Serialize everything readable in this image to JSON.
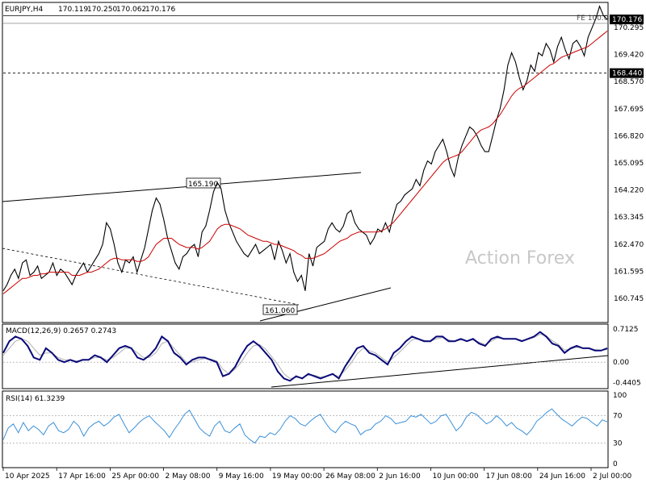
{
  "chart_data": {
    "type": "line",
    "header": {
      "symbol": "EURJPY,H4",
      "open": "170.119",
      "high": "170.250",
      "low": "170.062",
      "close": "170.176"
    },
    "watermark": "Action Forex",
    "price_panel": {
      "ylim": [
        160.4,
        170.7
      ],
      "y_ticks": [
        "170.295",
        "169.420",
        "168.570",
        "167.695",
        "166.820",
        "165.095",
        "164.220",
        "163.345",
        "162.470",
        "161.595",
        "160.745"
      ],
      "close_label": "170.176",
      "level_label": "168.440",
      "fe_label": "FE 100.0",
      "fe_level": 170.3,
      "hlines": [
        170.3,
        170.05,
        168.44
      ],
      "annotations": [
        "165.190",
        "161.060"
      ],
      "close_series": [
        161.4,
        161.6,
        161.9,
        162.1,
        161.8,
        162.3,
        162.4,
        161.9,
        162.0,
        162.2,
        161.8,
        161.9,
        162.0,
        162.3,
        161.9,
        162.1,
        162.0,
        161.8,
        161.6,
        161.9,
        162.1,
        162.3,
        162.0,
        162.2,
        162.4,
        162.6,
        162.9,
        163.6,
        163.4,
        162.9,
        162.3,
        162.0,
        162.4,
        162.3,
        162.5,
        162.0,
        162.4,
        162.8,
        163.4,
        164.0,
        164.4,
        164.2,
        163.7,
        163.1,
        162.7,
        162.3,
        162.1,
        162.5,
        162.6,
        162.8,
        162.9,
        162.5,
        163.3,
        163.5,
        164.0,
        164.6,
        164.9,
        164.7,
        164.0,
        163.6,
        163.3,
        163.0,
        162.8,
        162.6,
        162.5,
        162.7,
        162.9,
        162.6,
        162.7,
        162.8,
        162.9,
        162.4,
        163.0,
        162.7,
        162.3,
        162.6,
        162.0,
        161.7,
        161.9,
        161.4,
        162.6,
        162.2,
        162.8,
        162.9,
        163.0,
        163.4,
        163.6,
        163.4,
        163.3,
        163.5,
        163.9,
        164.0,
        163.6,
        163.4,
        163.3,
        163.2,
        162.9,
        163.1,
        163.4,
        163.3,
        163.6,
        163.3,
        163.8,
        164.2,
        164.3,
        164.5,
        164.6,
        164.7,
        165.0,
        164.8,
        165.3,
        165.6,
        165.5,
        165.9,
        166.1,
        166.3,
        165.9,
        165.4,
        165.1,
        165.7,
        166.1,
        166.4,
        166.7,
        166.6,
        166.4,
        166.1,
        165.9,
        165.9,
        166.4,
        166.9,
        167.3,
        167.9,
        168.7,
        169.1,
        168.8,
        168.3,
        167.9,
        168.2,
        168.7,
        168.5,
        169.1,
        169.0,
        169.4,
        169.2,
        168.8,
        169.3,
        169.6,
        169.2,
        168.9,
        169.4,
        169.5,
        169.3,
        169.0,
        169.6,
        169.9,
        170.2,
        170.6,
        170.3,
        170.176
      ],
      "ma_series": [
        161.3,
        161.4,
        161.5,
        161.6,
        161.7,
        161.8,
        161.8,
        161.85,
        161.9,
        161.9,
        161.95,
        161.95,
        162.0,
        162.0,
        162.0,
        162.0,
        162.0,
        162.0,
        161.9,
        161.9,
        161.9,
        161.95,
        162.0,
        162.0,
        162.05,
        162.1,
        162.2,
        162.3,
        162.4,
        162.45,
        162.45,
        162.4,
        162.4,
        162.4,
        162.4,
        162.35,
        162.35,
        162.4,
        162.5,
        162.7,
        162.9,
        163.0,
        163.1,
        163.1,
        163.1,
        163.0,
        162.9,
        162.85,
        162.8,
        162.8,
        162.8,
        162.75,
        162.8,
        162.9,
        163.0,
        163.2,
        163.4,
        163.5,
        163.55,
        163.55,
        163.5,
        163.45,
        163.4,
        163.3,
        163.2,
        163.15,
        163.1,
        163.05,
        163.0,
        163.0,
        162.95,
        162.9,
        162.9,
        162.85,
        162.8,
        162.75,
        162.7,
        162.6,
        162.55,
        162.45,
        162.45,
        162.45,
        162.5,
        162.55,
        162.6,
        162.7,
        162.8,
        162.9,
        163.0,
        163.05,
        163.1,
        163.2,
        163.25,
        163.3,
        163.3,
        163.3,
        163.3,
        163.3,
        163.3,
        163.35,
        163.4,
        163.5,
        163.6,
        163.75,
        163.9,
        164.05,
        164.2,
        164.35,
        164.5,
        164.65,
        164.8,
        164.95,
        165.1,
        165.25,
        165.4,
        165.55,
        165.65,
        165.7,
        165.75,
        165.8,
        165.9,
        166.05,
        166.2,
        166.35,
        166.5,
        166.6,
        166.65,
        166.7,
        166.8,
        166.95,
        167.1,
        167.3,
        167.5,
        167.7,
        167.85,
        167.95,
        168.0,
        168.1,
        168.2,
        168.3,
        168.4,
        168.5,
        168.6,
        168.7,
        168.75,
        168.85,
        168.95,
        169.0,
        169.05,
        169.1,
        169.15,
        169.2,
        169.25,
        169.3,
        169.4,
        169.5,
        169.6,
        169.7,
        169.8
      ]
    },
    "macd_panel": {
      "label": "MACD(12,26,9) 0.2657 0.2743",
      "ylim": [
        -0.55,
        0.8
      ],
      "y_ticks": [
        "0.7125",
        "0.00",
        "-0.4405"
      ],
      "macd_series": [
        0.2,
        0.45,
        0.55,
        0.5,
        0.35,
        0.1,
        0.05,
        0.3,
        0.2,
        0.05,
        0.0,
        0.05,
        0.0,
        0.05,
        0.05,
        0.15,
        0.1,
        0.0,
        0.15,
        0.3,
        0.35,
        0.3,
        0.1,
        0.05,
        0.15,
        0.3,
        0.55,
        0.45,
        0.2,
        0.1,
        -0.05,
        0.05,
        0.1,
        0.1,
        0.05,
        0.0,
        -0.3,
        -0.25,
        -0.1,
        0.15,
        0.35,
        0.45,
        0.35,
        0.2,
        0.05,
        -0.2,
        -0.35,
        -0.4,
        -0.3,
        -0.35,
        -0.25,
        -0.3,
        -0.35,
        -0.3,
        -0.25,
        -0.35,
        -0.1,
        0.1,
        0.3,
        0.35,
        0.2,
        0.15,
        0.05,
        -0.05,
        0.2,
        0.3,
        0.45,
        0.55,
        0.5,
        0.45,
        0.45,
        0.55,
        0.55,
        0.45,
        0.45,
        0.5,
        0.45,
        0.5,
        0.4,
        0.35,
        0.5,
        0.55,
        0.5,
        0.5,
        0.5,
        0.45,
        0.5,
        0.55,
        0.65,
        0.55,
        0.4,
        0.35,
        0.2,
        0.3,
        0.35,
        0.3,
        0.3,
        0.25,
        0.25,
        0.3
      ],
      "signal_series": [
        0.15,
        0.3,
        0.45,
        0.5,
        0.45,
        0.3,
        0.15,
        0.2,
        0.2,
        0.1,
        0.05,
        0.05,
        0.03,
        0.04,
        0.05,
        0.1,
        0.1,
        0.05,
        0.1,
        0.2,
        0.3,
        0.3,
        0.2,
        0.1,
        0.1,
        0.2,
        0.4,
        0.45,
        0.3,
        0.15,
        0.0,
        0.0,
        0.05,
        0.08,
        0.07,
        0.03,
        -0.15,
        -0.25,
        -0.15,
        0.0,
        0.2,
        0.35,
        0.38,
        0.28,
        0.12,
        -0.05,
        -0.25,
        -0.35,
        -0.33,
        -0.33,
        -0.28,
        -0.28,
        -0.32,
        -0.3,
        -0.27,
        -0.3,
        -0.18,
        -0.02,
        0.18,
        0.3,
        0.25,
        0.2,
        0.1,
        0.0,
        0.1,
        0.22,
        0.35,
        0.48,
        0.5,
        0.47,
        0.45,
        0.5,
        0.53,
        0.48,
        0.45,
        0.48,
        0.46,
        0.48,
        0.43,
        0.38,
        0.45,
        0.52,
        0.5,
        0.5,
        0.5,
        0.47,
        0.49,
        0.53,
        0.6,
        0.57,
        0.46,
        0.38,
        0.26,
        0.28,
        0.32,
        0.3,
        0.3,
        0.27,
        0.26,
        0.27
      ]
    },
    "rsi_panel": {
      "label": "RSI(14) 61.3239",
      "ylim": [
        0,
        100
      ],
      "y_ticks": [
        "100",
        "70",
        "30",
        "0"
      ],
      "levels": [
        70,
        30
      ],
      "rsi_series": [
        35,
        52,
        58,
        45,
        60,
        48,
        55,
        50,
        42,
        55,
        60,
        48,
        45,
        50,
        62,
        55,
        40,
        52,
        58,
        62,
        55,
        60,
        68,
        72,
        58,
        45,
        52,
        60,
        66,
        70,
        62,
        55,
        48,
        38,
        50,
        60,
        72,
        78,
        65,
        52,
        45,
        40,
        55,
        62,
        48,
        45,
        52,
        58,
        42,
        35,
        30,
        40,
        38,
        45,
        42,
        50,
        62,
        70,
        66,
        58,
        55,
        62,
        68,
        72,
        60,
        50,
        45,
        55,
        62,
        58,
        55,
        42,
        48,
        50,
        58,
        62,
        70,
        66,
        58,
        60,
        62,
        70,
        68,
        72,
        65,
        58,
        62,
        70,
        72,
        60,
        48,
        55,
        68,
        75,
        72,
        65,
        58,
        62,
        70,
        64,
        55,
        60,
        52,
        48,
        42,
        50,
        62,
        68,
        75,
        80,
        72,
        65,
        60,
        55,
        62,
        68,
        66,
        60,
        55,
        64,
        61
      ]
    },
    "x_ticks": [
      "10 Apr 2025",
      "17 Apr 16:00",
      "25 Apr 00:00",
      "2 May 08:00",
      "9 May 16:00",
      "19 May 00:00",
      "26 May 08:00",
      "2 Jun 16:00",
      "10 Jun 00:00",
      "17 Jun 08:00",
      "24 Jun 16:00",
      "2 Jul 00:00"
    ],
    "colors": {
      "price": "#000000",
      "ma": "#cc0000",
      "macd": "#0a0a7a",
      "signal": "#b0b0b0",
      "rsi": "#3a8fd8",
      "watermark": "#c8c8c8"
    }
  }
}
